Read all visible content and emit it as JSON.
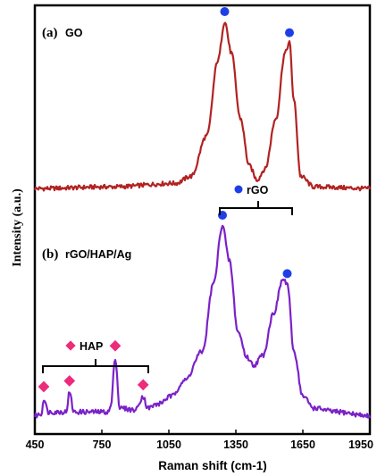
{
  "chart_data": {
    "type": "line",
    "xlabel": "Raman shift (cm-1)",
    "ylabel": "Intensity (a.u.)",
    "xlim": [
      450,
      1950
    ],
    "xticks": [
      "450",
      "750",
      "1050",
      "1350",
      "1650",
      "1950"
    ],
    "grid": false,
    "panels": [
      {
        "tag": "(a)",
        "name": "GO",
        "color": "#b22222",
        "marker": "blue-circle",
        "points": [
          [
            450,
            0.05
          ],
          [
            800,
            0.06
          ],
          [
            1080,
            0.08
          ],
          [
            1150,
            0.12
          ],
          [
            1220,
            0.35
          ],
          [
            1270,
            0.78
          ],
          [
            1300,
            1.0
          ],
          [
            1330,
            0.82
          ],
          [
            1370,
            0.45
          ],
          [
            1410,
            0.18
          ],
          [
            1445,
            0.1
          ],
          [
            1480,
            0.16
          ],
          [
            1530,
            0.45
          ],
          [
            1570,
            0.82
          ],
          [
            1590,
            0.88
          ],
          [
            1610,
            0.55
          ],
          [
            1640,
            0.12
          ],
          [
            1700,
            0.06
          ],
          [
            1950,
            0.05
          ]
        ],
        "peak_markers": [
          1300,
          1590
        ]
      },
      {
        "tag": "(b)",
        "name": "rGO/HAP/Ag",
        "color": "#7b22c8",
        "points": [
          [
            450,
            0.02
          ],
          [
            480,
            0.03
          ],
          [
            490,
            0.11
          ],
          [
            510,
            0.04
          ],
          [
            590,
            0.04
          ],
          [
            605,
            0.14
          ],
          [
            625,
            0.04
          ],
          [
            780,
            0.04
          ],
          [
            790,
            0.07
          ],
          [
            810,
            0.32
          ],
          [
            830,
            0.06
          ],
          [
            900,
            0.05
          ],
          [
            935,
            0.12
          ],
          [
            955,
            0.06
          ],
          [
            1000,
            0.08
          ],
          [
            1060,
            0.12
          ],
          [
            1120,
            0.2
          ],
          [
            1200,
            0.35
          ],
          [
            1250,
            0.7
          ],
          [
            1290,
            1.0
          ],
          [
            1320,
            0.82
          ],
          [
            1360,
            0.45
          ],
          [
            1400,
            0.32
          ],
          [
            1430,
            0.28
          ],
          [
            1470,
            0.33
          ],
          [
            1520,
            0.55
          ],
          [
            1560,
            0.72
          ],
          [
            1580,
            0.7
          ],
          [
            1610,
            0.35
          ],
          [
            1650,
            0.12
          ],
          [
            1700,
            0.06
          ],
          [
            1800,
            0.04
          ],
          [
            1950,
            0.02
          ]
        ],
        "peak_markers": [
          1290,
          1580
        ],
        "hap_markers": [
          490,
          605,
          810,
          935
        ],
        "annotations": [
          {
            "label": "rGO",
            "marker": "blue-circle",
            "x_range": [
              1260,
              1610
            ]
          },
          {
            "label": "HAP",
            "marker": "pink-diamond",
            "x_range": [
              450,
              950
            ]
          }
        ]
      }
    ]
  },
  "colors": {
    "go_line": "#b22222",
    "composite_line": "#7b22c8",
    "rgo_marker": "#1f3fe6",
    "hap_marker": "#ee2a7b",
    "axis": "#000000"
  }
}
